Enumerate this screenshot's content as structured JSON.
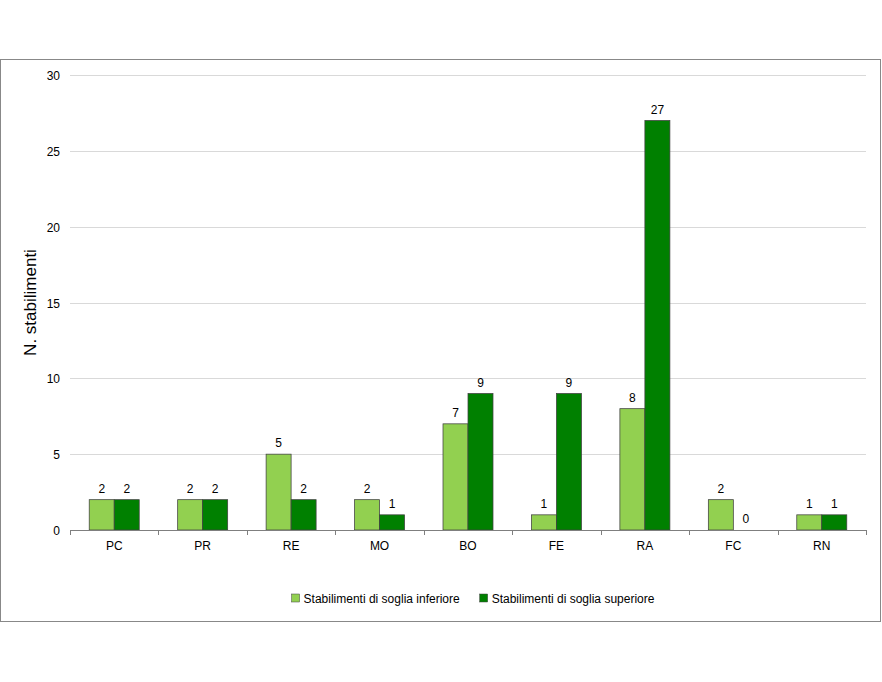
{
  "chart_data": {
    "type": "bar",
    "y_label": "N. stabilimenti",
    "categories": [
      "PC",
      "PR",
      "RE",
      "MO",
      "BO",
      "FE",
      "RA",
      "FC",
      "RN"
    ],
    "series": [
      {
        "name": "Stabilimenti di soglia inferiore",
        "color": "#92d050",
        "values": [
          2,
          2,
          5,
          2,
          7,
          1,
          8,
          2,
          1
        ]
      },
      {
        "name": "Stabilimenti di soglia superiore",
        "color": "#008000",
        "values": [
          2,
          2,
          2,
          1,
          9,
          9,
          27,
          0,
          1
        ]
      }
    ],
    "ylim": [
      0,
      30
    ],
    "yticks": [
      0,
      5,
      10,
      15,
      20,
      25,
      30
    ],
    "grid": true,
    "data_labels": true,
    "legend": "bottom"
  }
}
